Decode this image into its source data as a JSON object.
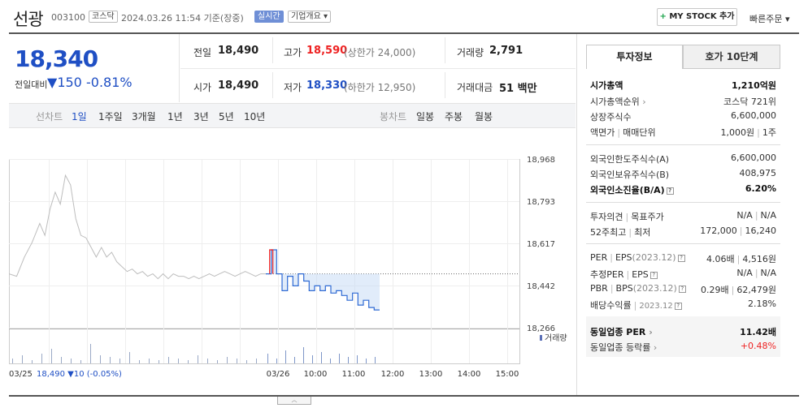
{
  "header": {
    "name": "선광",
    "code": "003100",
    "market": "코스닥",
    "time": "2024.03.26 11:54 기준(장중)",
    "realtime": "실시간",
    "company_overview": "기업개요 ▾",
    "mystock_label": "MY STOCK 추가",
    "quick_order": "빠른주문 ▾"
  },
  "price": {
    "current": "18,340",
    "change_label": "전일대비",
    "change_arrow": "▼",
    "change": "150",
    "change_pct": "-0.81%"
  },
  "quote": {
    "prev_label": "전일",
    "prev": "18,490",
    "high_label": "고가",
    "high": "18,590",
    "upper_limit": "(상한가 24,000)",
    "volume_label": "거래량",
    "volume": "2,791",
    "open_label": "시가",
    "open": "18,490",
    "low_label": "저가",
    "low": "18,330",
    "lower_limit": "(하한가 12,950)",
    "amount_label": "거래대금",
    "amount": "51 백만"
  },
  "periods": {
    "line_label": "선차트",
    "line_items": [
      "1일",
      "1주일",
      "3개월",
      "1년",
      "3년",
      "5년",
      "10년"
    ],
    "candle_label": "봉차트",
    "candle_items": [
      "일봉",
      "주봉",
      "월봉"
    ]
  },
  "chart_data": {
    "type": "line",
    "y_ticks": [
      "18,968",
      "18,793",
      "18,617",
      "18,442",
      "18,266"
    ],
    "ylim": [
      18266,
      18968
    ],
    "x_ticks": [
      "03/26",
      "10:00",
      "11:00",
      "12:00",
      "13:00",
      "14:00",
      "15:00"
    ],
    "prev_day_label": "03/25",
    "prev_close": 18490,
    "prev_day_summary": "18,490 ▼10 (-0.05%)",
    "volume_legend": "거래량",
    "series": [
      {
        "points": [
          [
            0,
            18490
          ],
          [
            3,
            18480
          ],
          [
            6,
            18560
          ],
          [
            9,
            18620
          ],
          [
            12,
            18700
          ],
          [
            14,
            18650
          ],
          [
            16,
            18760
          ],
          [
            18,
            18830
          ],
          [
            20,
            18780
          ],
          [
            22,
            18900
          ],
          [
            24,
            18860
          ],
          [
            26,
            18720
          ],
          [
            28,
            18650
          ],
          [
            30,
            18640
          ],
          [
            32,
            18600
          ],
          [
            34,
            18560
          ],
          [
            36,
            18600
          ],
          [
            38,
            18560
          ],
          [
            40,
            18580
          ],
          [
            42,
            18540
          ],
          [
            44,
            18520
          ],
          [
            46,
            18500
          ],
          [
            48,
            18510
          ],
          [
            50,
            18490
          ],
          [
            52,
            18500
          ],
          [
            54,
            18480
          ],
          [
            56,
            18490
          ],
          [
            58,
            18470
          ],
          [
            60,
            18490
          ],
          [
            62,
            18470
          ],
          [
            64,
            18490
          ],
          [
            66,
            18480
          ],
          [
            68,
            18480
          ],
          [
            70,
            18470
          ],
          [
            72,
            18480
          ],
          [
            74,
            18470
          ],
          [
            76,
            18480
          ],
          [
            78,
            18490
          ],
          [
            80,
            18480
          ],
          [
            82,
            18490
          ],
          [
            84,
            18500
          ],
          [
            86,
            18490
          ],
          [
            88,
            18480
          ],
          [
            90,
            18490
          ],
          [
            92,
            18500
          ],
          [
            94,
            18490
          ],
          [
            96,
            18480
          ],
          [
            98,
            18490
          ],
          [
            100,
            18490
          ]
        ]
      },
      {
        "points": [
          [
            0,
            18490
          ],
          [
            1,
            18590
          ],
          [
            2,
            18490
          ],
          [
            3,
            18420
          ],
          [
            4,
            18480
          ],
          [
            5,
            18440
          ],
          [
            6,
            18490
          ],
          [
            7,
            18460
          ],
          [
            8,
            18420
          ],
          [
            9,
            18440
          ],
          [
            10,
            18420
          ],
          [
            11,
            18440
          ],
          [
            12,
            18410
          ],
          [
            13,
            18420
          ],
          [
            14,
            18400
          ],
          [
            15,
            18380
          ],
          [
            16,
            18410
          ],
          [
            17,
            18360
          ],
          [
            18,
            18380
          ],
          [
            19,
            18350
          ],
          [
            20,
            18340
          ],
          [
            21,
            18340
          ]
        ]
      }
    ]
  },
  "info_panel": {
    "tab_active": "투자정보",
    "tab_inactive": "호가 10단계",
    "market_cap_label": "시가총액",
    "market_cap": "1,210억원",
    "rank_label": "시가총액순위",
    "rank": "코스닥 721위",
    "shares_label": "상장주식수",
    "shares": "6,600,000",
    "facevalue_label": "액면가",
    "unit_label": "매매단위",
    "facevalue": "1,000원",
    "unit": "1주",
    "foreign_limit_label": "외국인한도주식수(A)",
    "foreign_limit": "6,600,000",
    "foreign_hold_label": "외국인보유주식수(B)",
    "foreign_hold": "408,975",
    "foreign_ratio_label": "외국인소진율(B/A)",
    "foreign_ratio": "6.20%",
    "opinion_label": "투자의견",
    "target_label": "목표주가",
    "opinion": "N/A",
    "target": "N/A",
    "w52_high_label": "52주최고",
    "w52_low_label": "최저",
    "w52_high": "172,000",
    "w52_low": "16,240",
    "per_label": "PER",
    "eps_label": "EPS",
    "eps_year": "(2023.12)",
    "per": "4.06배",
    "eps": "4,516원",
    "est_per_label": "추정PER",
    "est_eps_label": "EPS",
    "est_per": "N/A",
    "est_eps": "N/A",
    "pbr_label": "PBR",
    "bps_label": "BPS",
    "bps_year": "(2023.12)",
    "pbr": "0.29배",
    "bps": "62,479원",
    "div_label": "배당수익률",
    "div_year": "2023.12",
    "div": "2.18%",
    "sector_per_label": "동일업종 PER",
    "sector_per": "11.42배",
    "sector_chg_label": "동일업종 등락률",
    "sector_chg": "+0.48%"
  }
}
